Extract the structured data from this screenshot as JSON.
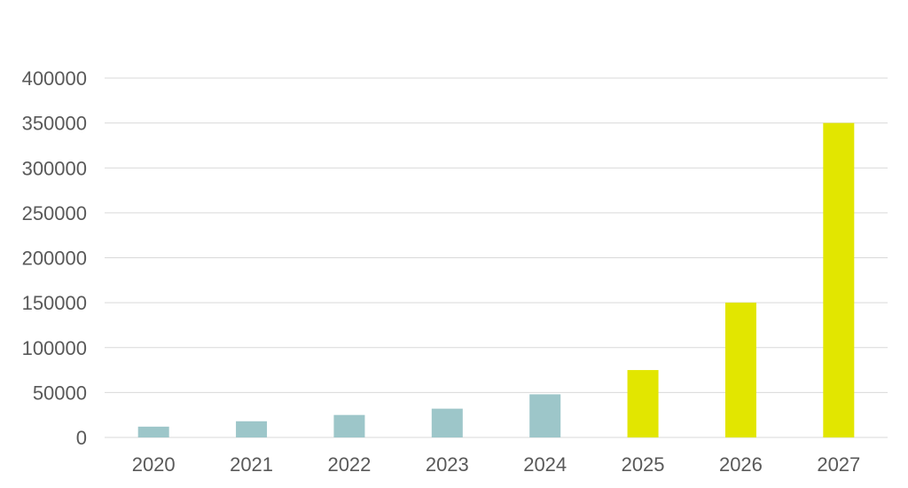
{
  "chart_data": {
    "type": "bar",
    "title": "",
    "xlabel": "",
    "ylabel": "",
    "categories": [
      "2020",
      "2021",
      "2022",
      "2023",
      "2024",
      "2025",
      "2026",
      "2027"
    ],
    "values": [
      12000,
      18000,
      25000,
      32000,
      48000,
      75000,
      150000,
      350000
    ],
    "bar_colors": [
      "#9dc6c9",
      "#9dc6c9",
      "#9dc6c9",
      "#9dc6c9",
      "#9dc6c9",
      "#e2e600",
      "#e2e600",
      "#e2e600"
    ],
    "ylim": [
      0,
      400000
    ],
    "yticks": [
      "0",
      "50000",
      "100000",
      "150000",
      "200000",
      "250000",
      "300000",
      "350000",
      "400000"
    ],
    "grid": true,
    "legend": "none"
  }
}
